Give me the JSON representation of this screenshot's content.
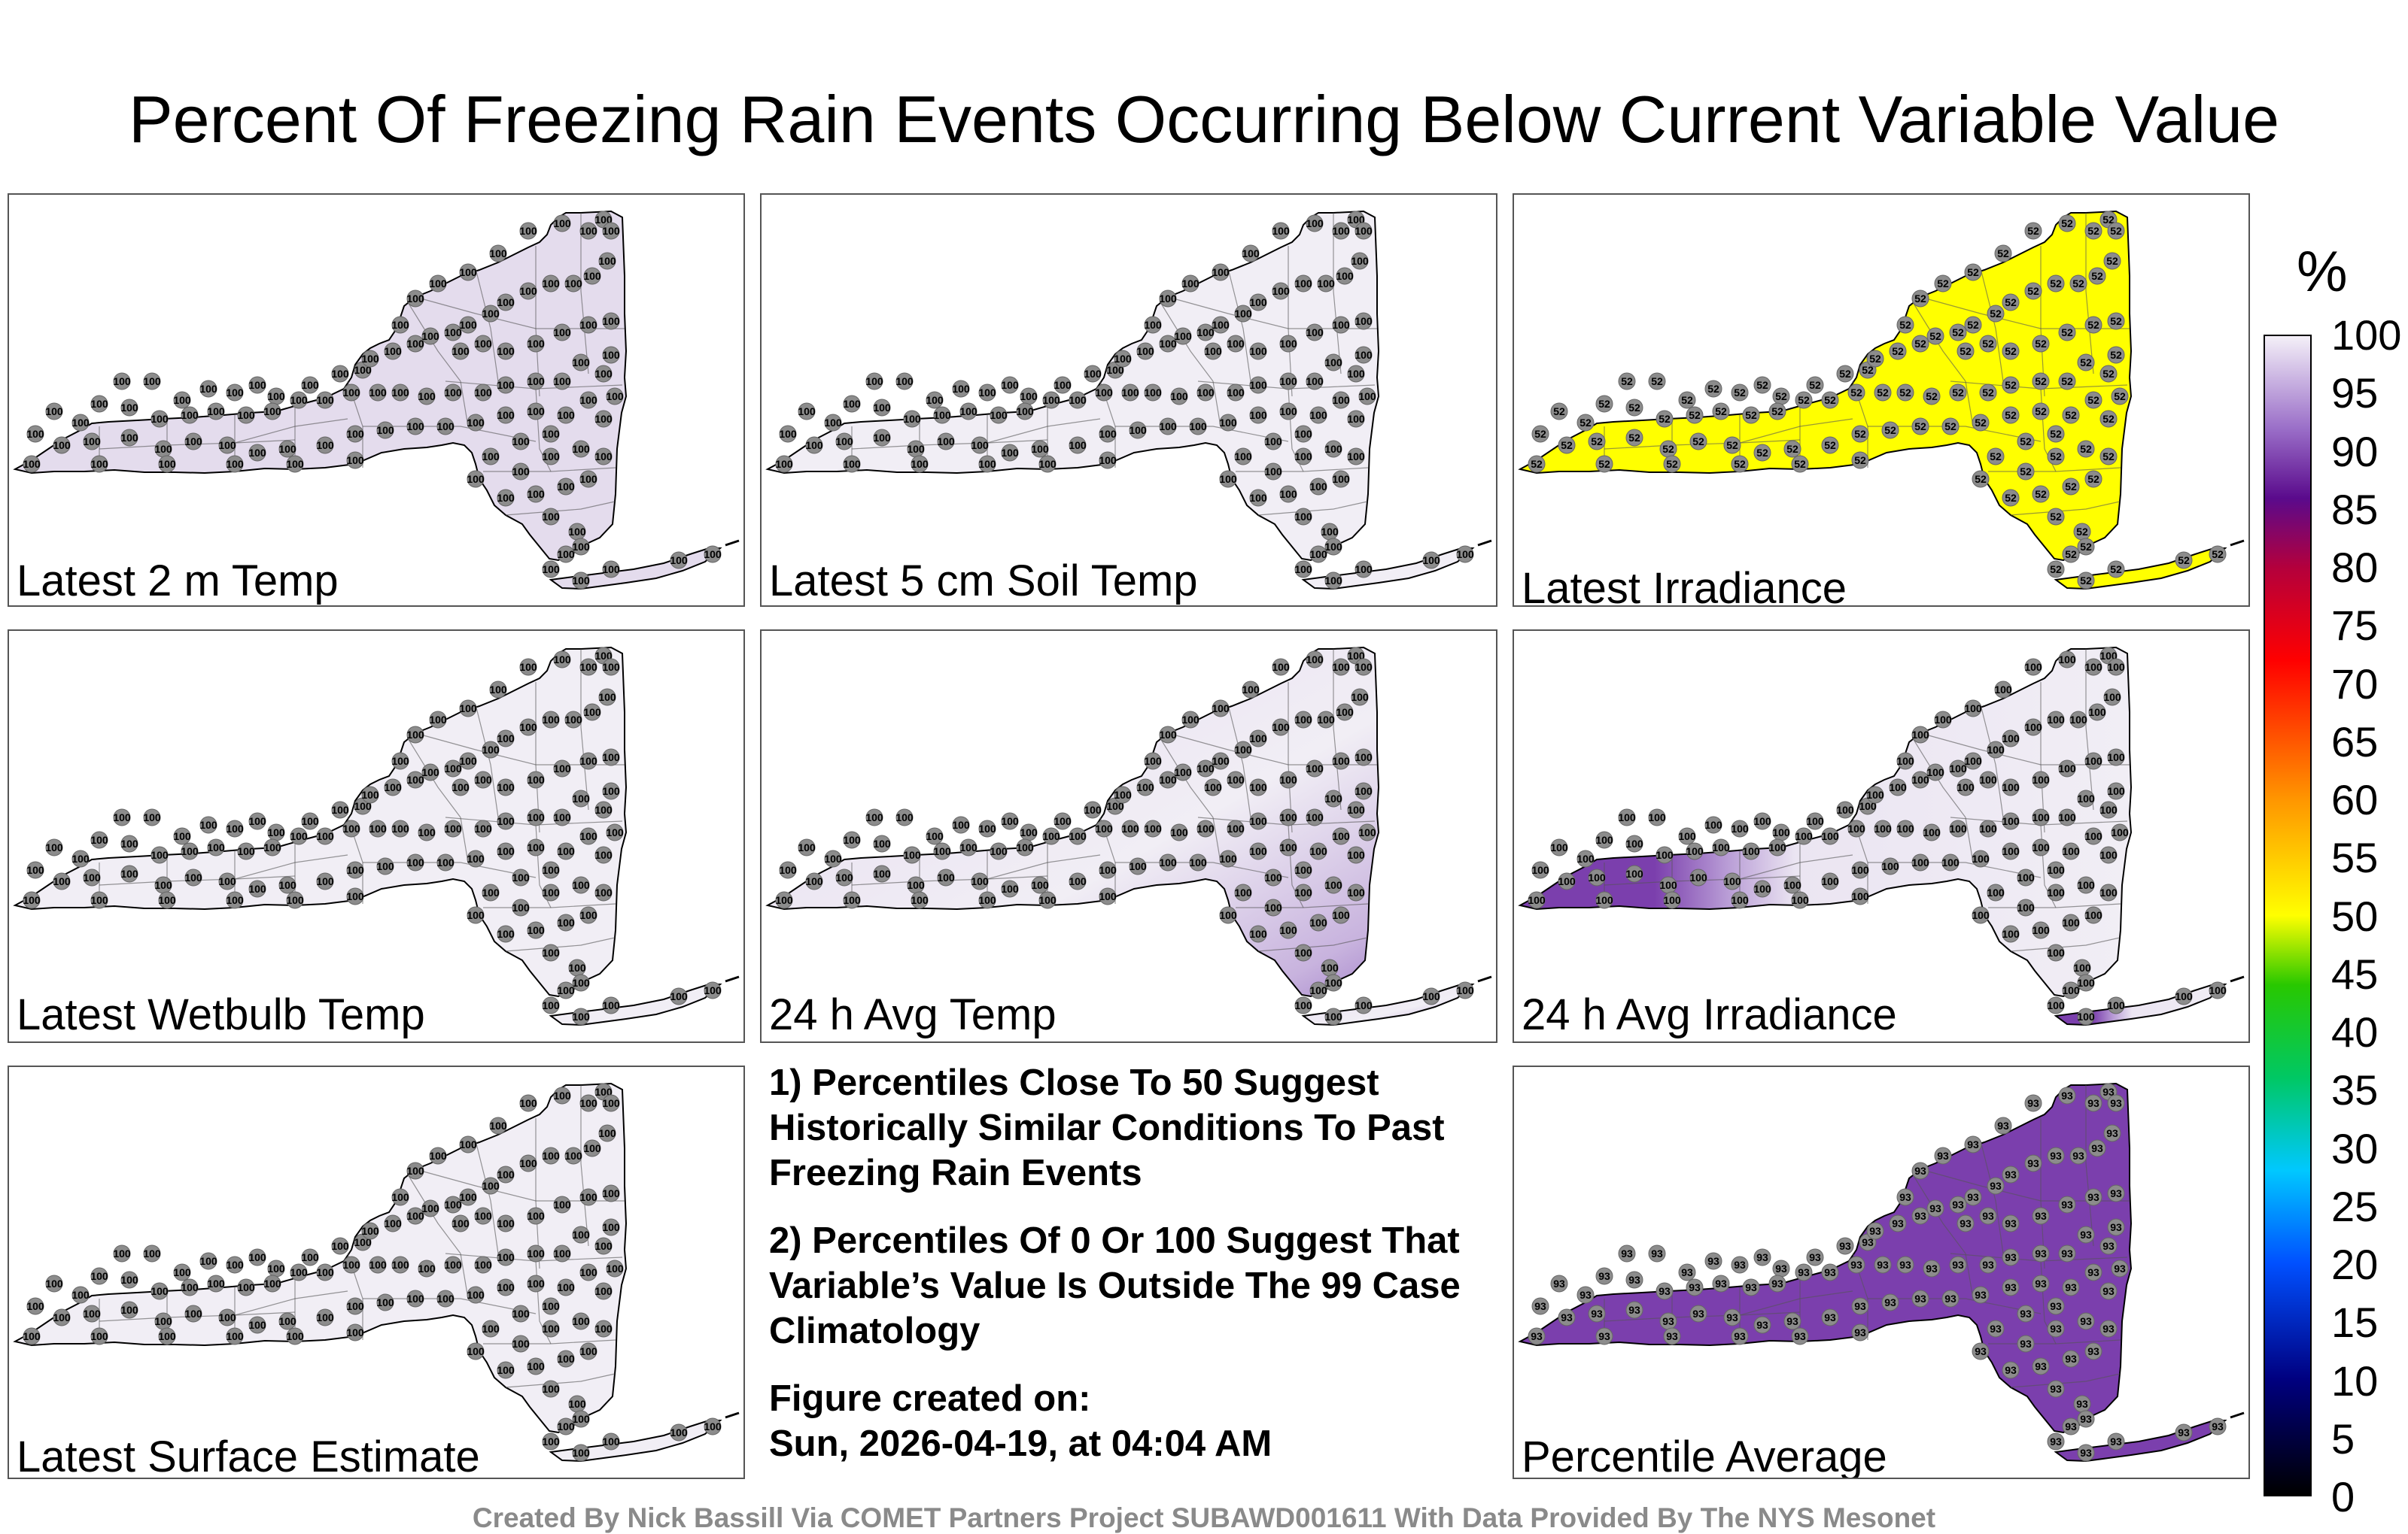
{
  "title": "Percent Of Freezing Rain Events Occurring Below Current Variable Value",
  "panels": [
    {
      "label": "Latest 2 m Temp",
      "fill": "#e4dced",
      "station_value": "100",
      "gradient": "none"
    },
    {
      "label": "Latest 5 cm Soil Temp",
      "fill": "#f1eef5",
      "station_value": "100",
      "gradient": "none"
    },
    {
      "label": "Latest Irradiance",
      "fill": "#ffff00",
      "station_value": "52",
      "gradient": "none"
    },
    {
      "label": "Latest Wetbulb Temp",
      "fill": "#f1eef5",
      "station_value": "100",
      "gradient": "none"
    },
    {
      "label": "24 h Avg Temp",
      "fill": "#ebe5f2",
      "station_value": "100",
      "gradient": "southeast"
    },
    {
      "label": "24 h Avg Irradiance",
      "fill": "#e9e2f0",
      "station_value": "100",
      "gradient": "west"
    },
    {
      "label": "Latest Surface Estimate",
      "fill": "#f1eef5",
      "station_value": "100",
      "gradient": "none"
    },
    {
      "label": "Percentile Average",
      "fill": "#7b3fad",
      "station_value": "93",
      "gradient": "none"
    }
  ],
  "notes": [
    "1) Percentiles Close To 50 Suggest Historically Similar Conditions To Past Freezing Rain Events",
    "2) Percentiles Of 0 Or 100 Suggest That Variable’s Value Is Outside The 99 Case Climatology",
    "Figure created on:",
    "Sun, 2026-04-19, at 04:04 AM"
  ],
  "colorbar": {
    "unit": "%",
    "ticks": [
      "100",
      "95",
      "90",
      "85",
      "80",
      "75",
      "70",
      "65",
      "60",
      "55",
      "50",
      "45",
      "40",
      "35",
      "30",
      "25",
      "20",
      "15",
      "10",
      "5",
      "0"
    ]
  },
  "credit": "Created By Nick Bassill Via COMET Partners Project SUBAWD001611 With Data Provided By The NYS Mesonet"
}
